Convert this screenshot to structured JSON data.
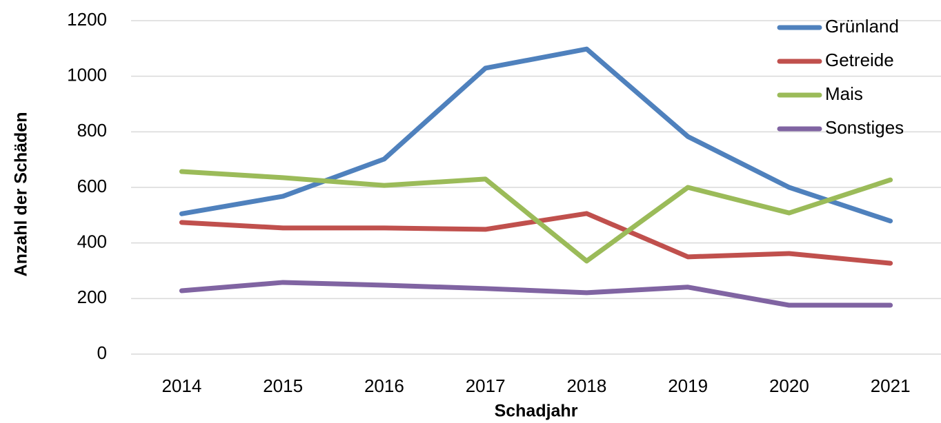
{
  "chart_data": {
    "type": "line",
    "x_label": "Schadjahr",
    "y_label": "Anzahl der Schäden",
    "categories": [
      "2014",
      "2015",
      "2016",
      "2017",
      "2018",
      "2019",
      "2020",
      "2021"
    ],
    "series": [
      {
        "name": "Grünland",
        "color": "#4f81bd",
        "values": [
          505,
          568,
          702,
          1029,
          1098,
          783,
          600,
          479
        ]
      },
      {
        "name": "Getreide",
        "color": "#c0504d",
        "values": [
          474,
          454,
          454,
          449,
          506,
          350,
          362,
          327
        ]
      },
      {
        "name": "Mais",
        "color": "#9bbb59",
        "values": [
          657,
          635,
          607,
          630,
          335,
          600,
          508,
          627
        ]
      },
      {
        "name": "Sonstiges",
        "color": "#8064a2",
        "values": [
          228,
          258,
          248,
          236,
          221,
          241,
          176,
          176
        ]
      }
    ],
    "ylim": [
      0,
      1200
    ],
    "yticks": [
      0,
      200,
      400,
      600,
      800,
      1000,
      1200
    ],
    "grid": true,
    "legend": "top-right"
  }
}
